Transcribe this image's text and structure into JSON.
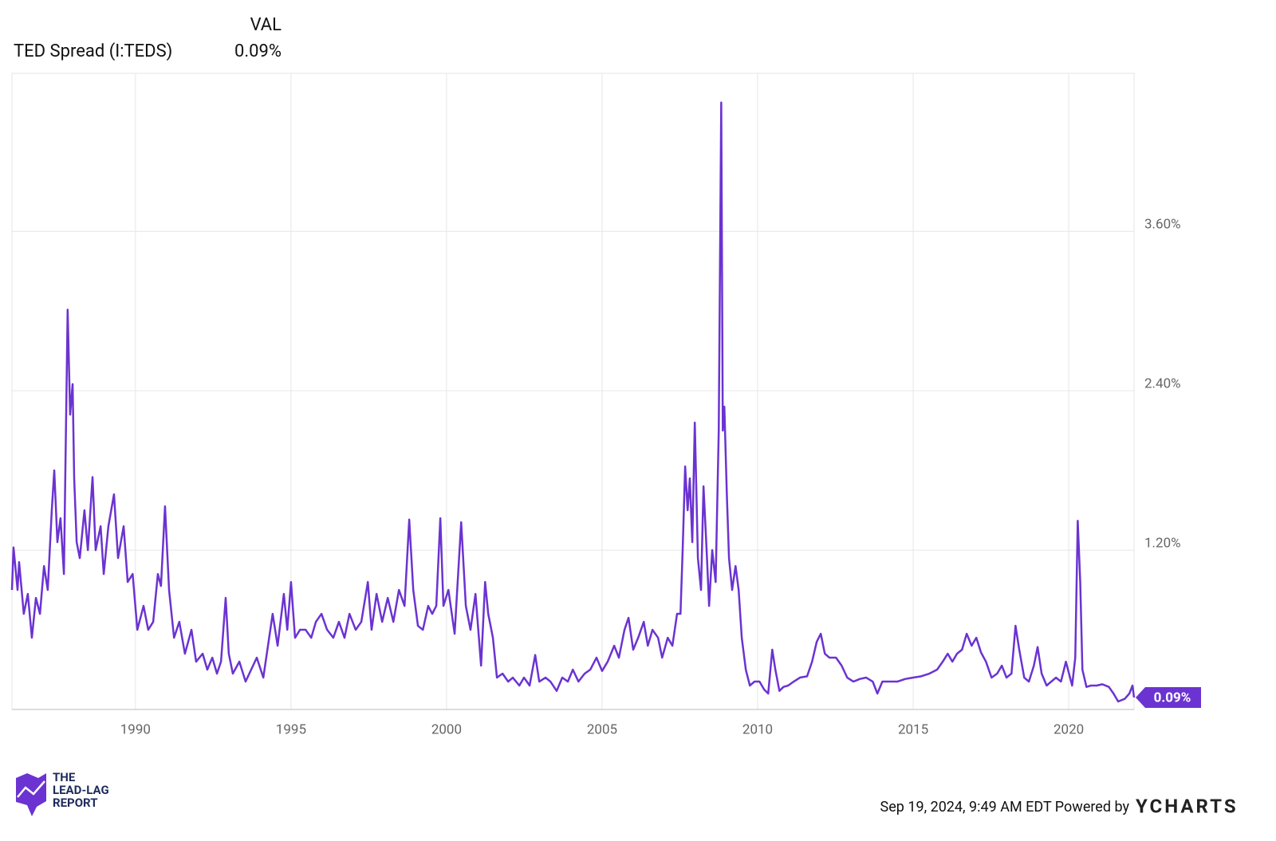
{
  "chart_data": {
    "type": "line",
    "header": {
      "value_column": "VAL"
    },
    "series": [
      {
        "name": "TED Spread (I:TEDS)",
        "color": "#6b33d1",
        "last_value_label": "0.09%",
        "x": [
          1986.03,
          1986.08,
          1986.21,
          1986.26,
          1986.41,
          1986.54,
          1986.67,
          1986.8,
          1986.93,
          1987.06,
          1987.18,
          1987.31,
          1987.39,
          1987.49,
          1987.59,
          1987.7,
          1987.82,
          1987.9,
          1987.98,
          1988.03,
          1988.11,
          1988.21,
          1988.36,
          1988.47,
          1988.62,
          1988.72,
          1988.88,
          1988.98,
          1989.13,
          1989.31,
          1989.44,
          1989.62,
          1989.75,
          1989.91,
          1990.06,
          1990.26,
          1990.41,
          1990.57,
          1990.72,
          1990.82,
          1990.95,
          1991.08,
          1991.24,
          1991.41,
          1991.59,
          1991.8,
          1991.95,
          1992.16,
          1992.31,
          1992.47,
          1992.62,
          1992.75,
          1992.9,
          1993.0,
          1993.13,
          1993.34,
          1993.54,
          1993.72,
          1993.9,
          1994.11,
          1994.26,
          1994.41,
          1994.57,
          1994.77,
          1994.88,
          1995.0,
          1995.13,
          1995.29,
          1995.47,
          1995.65,
          1995.8,
          1995.98,
          1996.16,
          1996.36,
          1996.54,
          1996.72,
          1996.88,
          1997.08,
          1997.26,
          1997.47,
          1997.59,
          1997.75,
          1997.93,
          1998.11,
          1998.29,
          1998.47,
          1998.65,
          1998.8,
          1998.93,
          1999.08,
          1999.24,
          1999.41,
          1999.54,
          1999.67,
          1999.8,
          1999.9,
          2000.06,
          2000.26,
          2000.47,
          2000.62,
          2000.77,
          2000.93,
          2001.11,
          2001.24,
          2001.34,
          2001.49,
          2001.62,
          2001.8,
          2001.98,
          2002.13,
          2002.34,
          2002.49,
          2002.67,
          2002.85,
          2002.98,
          2003.18,
          2003.34,
          2003.54,
          2003.72,
          2003.9,
          2004.06,
          2004.24,
          2004.44,
          2004.62,
          2004.82,
          2005.0,
          2005.18,
          2005.39,
          2005.54,
          2005.72,
          2005.85,
          2006.0,
          2006.16,
          2006.34,
          2006.47,
          2006.62,
          2006.8,
          2006.93,
          2007.11,
          2007.26,
          2007.41,
          2007.52,
          2007.59,
          2007.67,
          2007.75,
          2007.82,
          2007.9,
          2007.98,
          2008.08,
          2008.18,
          2008.26,
          2008.36,
          2008.44,
          2008.54,
          2008.65,
          2008.75,
          2008.83,
          2008.88,
          2008.93,
          2009.01,
          2009.08,
          2009.18,
          2009.29,
          2009.39,
          2009.49,
          2009.62,
          2009.75,
          2009.9,
          2010.06,
          2010.21,
          2010.34,
          2010.47,
          2010.57,
          2010.7,
          2010.83,
          2010.98,
          2011.16,
          2011.36,
          2011.59,
          2011.75,
          2011.9,
          2012.03,
          2012.16,
          2012.31,
          2012.52,
          2012.7,
          2012.88,
          2013.08,
          2013.29,
          2013.49,
          2013.7,
          2013.85,
          2014.01,
          2014.24,
          2014.49,
          2014.75,
          2015.0,
          2015.26,
          2015.52,
          2015.77,
          2015.95,
          2016.11,
          2016.26,
          2016.41,
          2016.57,
          2016.72,
          2016.88,
          2017.03,
          2017.18,
          2017.34,
          2017.52,
          2017.7,
          2017.85,
          2018.0,
          2018.16,
          2018.29,
          2018.41,
          2018.57,
          2018.72,
          2018.88,
          2019.0,
          2019.13,
          2019.29,
          2019.44,
          2019.59,
          2019.75,
          2019.91,
          2020.01,
          2020.11,
          2020.21,
          2020.29,
          2020.37,
          2020.44,
          2020.57,
          2020.72,
          2020.9,
          2021.08,
          2021.29,
          2021.44,
          2021.59,
          2021.8,
          2021.95,
          2022.05,
          2022.1
        ],
        "values": [
          0.9,
          1.22,
          0.9,
          1.11,
          0.72,
          0.87,
          0.54,
          0.84,
          0.72,
          1.08,
          0.9,
          1.5,
          1.8,
          1.26,
          1.44,
          1.02,
          3.01,
          2.22,
          2.45,
          1.74,
          1.26,
          1.14,
          1.5,
          1.2,
          1.75,
          1.2,
          1.38,
          1.02,
          1.38,
          1.62,
          1.14,
          1.38,
          0.96,
          1.02,
          0.6,
          0.78,
          0.6,
          0.66,
          1.02,
          0.93,
          1.53,
          0.9,
          0.54,
          0.66,
          0.42,
          0.6,
          0.36,
          0.42,
          0.3,
          0.39,
          0.27,
          0.36,
          0.84,
          0.42,
          0.27,
          0.36,
          0.21,
          0.3,
          0.39,
          0.24,
          0.48,
          0.72,
          0.48,
          0.87,
          0.6,
          0.96,
          0.54,
          0.6,
          0.6,
          0.54,
          0.66,
          0.72,
          0.6,
          0.54,
          0.66,
          0.54,
          0.72,
          0.6,
          0.66,
          0.96,
          0.6,
          0.87,
          0.66,
          0.84,
          0.66,
          0.9,
          0.78,
          1.43,
          0.9,
          0.63,
          0.6,
          0.78,
          0.72,
          0.78,
          1.44,
          0.78,
          0.9,
          0.57,
          1.41,
          0.78,
          0.6,
          0.87,
          0.33,
          0.96,
          0.72,
          0.54,
          0.24,
          0.27,
          0.21,
          0.24,
          0.18,
          0.24,
          0.18,
          0.41,
          0.21,
          0.24,
          0.21,
          0.14,
          0.24,
          0.21,
          0.3,
          0.21,
          0.27,
          0.3,
          0.39,
          0.29,
          0.36,
          0.48,
          0.39,
          0.6,
          0.69,
          0.45,
          0.54,
          0.66,
          0.48,
          0.6,
          0.54,
          0.39,
          0.54,
          0.48,
          0.72,
          0.72,
          1.2,
          1.83,
          1.5,
          1.74,
          1.26,
          2.16,
          1.14,
          0.9,
          1.68,
          1.2,
          0.78,
          1.2,
          0.96,
          2.1,
          4.57,
          2.1,
          2.28,
          1.62,
          1.14,
          0.9,
          1.08,
          0.9,
          0.54,
          0.3,
          0.18,
          0.21,
          0.21,
          0.15,
          0.12,
          0.45,
          0.3,
          0.14,
          0.17,
          0.18,
          0.21,
          0.24,
          0.25,
          0.36,
          0.51,
          0.57,
          0.42,
          0.39,
          0.39,
          0.33,
          0.24,
          0.21,
          0.23,
          0.24,
          0.21,
          0.12,
          0.21,
          0.21,
          0.21,
          0.23,
          0.24,
          0.25,
          0.27,
          0.3,
          0.36,
          0.42,
          0.36,
          0.42,
          0.45,
          0.57,
          0.48,
          0.54,
          0.43,
          0.36,
          0.24,
          0.27,
          0.33,
          0.24,
          0.27,
          0.63,
          0.45,
          0.24,
          0.21,
          0.33,
          0.47,
          0.27,
          0.18,
          0.21,
          0.24,
          0.21,
          0.36,
          0.27,
          0.18,
          0.39,
          1.42,
          0.96,
          0.3,
          0.17,
          0.18,
          0.18,
          0.19,
          0.17,
          0.12,
          0.06,
          0.08,
          0.12,
          0.18,
          0.09
        ]
      }
    ],
    "xlim": [
      1986.03,
      2022.1
    ],
    "xticks": [
      1990,
      1995,
      2000,
      2005,
      2010,
      2015,
      2020
    ],
    "ylim": [
      0,
      4.79
    ],
    "yticks": [
      {
        "value": 1.2,
        "label": "1.20%"
      },
      {
        "value": 2.4,
        "label": "2.40%"
      },
      {
        "value": 3.6,
        "label": "3.60%"
      }
    ],
    "grid": true
  },
  "branding": {
    "logo_lines": [
      "THE",
      "LEAD-LAG",
      "REPORT"
    ],
    "timestamp": "Sep 19, 2024, 9:49 AM EDT Powered by",
    "provider": "YCHARTS"
  }
}
